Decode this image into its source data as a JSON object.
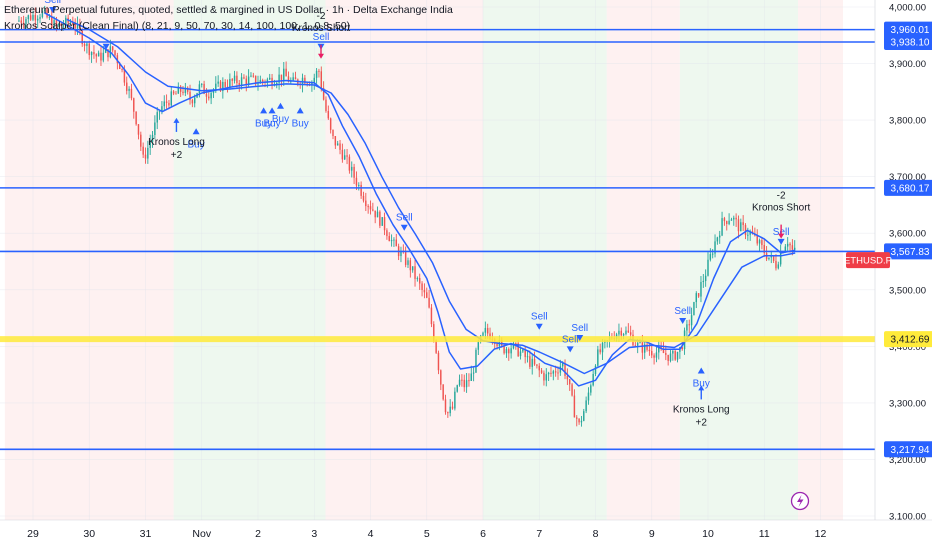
{
  "header": {
    "title": "Ethereum Perpetual futures, quoted, settled & margined in US Dollar · 1h · Delta Exchange India",
    "indicator": "Kronos Scalper (Clean Final) (8, 21, 9, 50, 70, 30, 14, 100, 100, 1, 0.8, 50)"
  },
  "colors": {
    "up": "#26a69a",
    "down": "#ef5350",
    "ema": "#2962ff",
    "level": "#2962ff",
    "highlight": "#ffeb3b",
    "bg_long": "#e8f5e9",
    "bg_short": "#fdecec",
    "price_tag": "#ef3d47",
    "axis_text": "#131722"
  },
  "chart_data": {
    "type": "candlestick",
    "title": "Ethereum Perpetual futures, quoted, settled & margined in US Dollar · 1h · Delta Exchange India",
    "symbol": "ETHUSD.P",
    "interval": "1h",
    "ylim": [
      3080,
      4025
    ],
    "y_ticks": [
      4000,
      3900,
      3800,
      3700,
      3600,
      3500,
      3400,
      3300,
      3200,
      3100
    ],
    "y_tick_labels": [
      "4,000.00",
      "3,900.00",
      "3,800.00",
      "3,700.00",
      "3,600.00",
      "3,500.00",
      "3,400.00",
      "3,300.00",
      "3,200.00",
      "3,100.00"
    ],
    "x_day_labels": [
      {
        "label": "29",
        "day": 0
      },
      {
        "label": "30",
        "day": 1
      },
      {
        "label": "31",
        "day": 2
      },
      {
        "label": "Nov",
        "day": 3
      },
      {
        "label": "2",
        "day": 4
      },
      {
        "label": "3",
        "day": 5
      },
      {
        "label": "4",
        "day": 6
      },
      {
        "label": "5",
        "day": 7
      },
      {
        "label": "6",
        "day": 8
      },
      {
        "label": "7",
        "day": 9
      },
      {
        "label": "8",
        "day": 10
      },
      {
        "label": "9",
        "day": 11
      },
      {
        "label": "10",
        "day": 12
      },
      {
        "label": "11",
        "day": 13
      },
      {
        "label": "12",
        "day": 14
      }
    ],
    "price_path": [
      [
        -0.25,
        3975
      ],
      [
        0.2,
        3990
      ],
      [
        0.45,
        3965
      ],
      [
        0.75,
        3975
      ],
      [
        1.0,
        3930
      ],
      [
        1.2,
        3910
      ],
      [
        1.45,
        3925
      ],
      [
        1.6,
        3895
      ],
      [
        1.75,
        3850
      ],
      [
        1.88,
        3800
      ],
      [
        2.0,
        3730
      ],
      [
        2.12,
        3760
      ],
      [
        2.3,
        3820
      ],
      [
        2.5,
        3840
      ],
      [
        2.7,
        3855
      ],
      [
        2.85,
        3835
      ],
      [
        3.0,
        3858
      ],
      [
        3.15,
        3848
      ],
      [
        3.4,
        3862
      ],
      [
        3.6,
        3868
      ],
      [
        3.85,
        3872
      ],
      [
        4.05,
        3868
      ],
      [
        4.3,
        3872
      ],
      [
        4.5,
        3880
      ],
      [
        4.65,
        3865
      ],
      [
        4.85,
        3875
      ],
      [
        5.0,
        3868
      ],
      [
        5.12,
        3890
      ],
      [
        5.22,
        3830
      ],
      [
        5.35,
        3770
      ],
      [
        5.55,
        3740
      ],
      [
        5.75,
        3700
      ],
      [
        5.95,
        3660
      ],
      [
        6.1,
        3640
      ],
      [
        6.3,
        3610
      ],
      [
        6.45,
        3580
      ],
      [
        6.6,
        3560
      ],
      [
        6.75,
        3540
      ],
      [
        6.9,
        3510
      ],
      [
        7.05,
        3480
      ],
      [
        7.2,
        3400
      ],
      [
        7.3,
        3330
      ],
      [
        7.4,
        3280
      ],
      [
        7.5,
        3290
      ],
      [
        7.6,
        3340
      ],
      [
        7.72,
        3330
      ],
      [
        7.85,
        3350
      ],
      [
        7.95,
        3400
      ],
      [
        8.08,
        3425
      ],
      [
        8.22,
        3420
      ],
      [
        8.38,
        3395
      ],
      [
        8.55,
        3400
      ],
      [
        8.7,
        3390
      ],
      [
        8.85,
        3375
      ],
      [
        9.0,
        3360
      ],
      [
        9.15,
        3345
      ],
      [
        9.3,
        3355
      ],
      [
        9.45,
        3370
      ],
      [
        9.55,
        3340
      ],
      [
        9.65,
        3290
      ],
      [
        9.75,
        3260
      ],
      [
        9.88,
        3300
      ],
      [
        10.05,
        3380
      ],
      [
        10.2,
        3400
      ],
      [
        10.35,
        3420
      ],
      [
        10.5,
        3430
      ],
      [
        10.65,
        3420
      ],
      [
        10.8,
        3400
      ],
      [
        10.95,
        3395
      ],
      [
        11.1,
        3390
      ],
      [
        11.25,
        3388
      ],
      [
        11.4,
        3380
      ],
      [
        11.55,
        3395
      ],
      [
        11.7,
        3440
      ],
      [
        11.85,
        3490
      ],
      [
        12.0,
        3530
      ],
      [
        12.15,
        3580
      ],
      [
        12.3,
        3620
      ],
      [
        12.45,
        3630
      ],
      [
        12.6,
        3610
      ],
      [
        12.8,
        3600
      ],
      [
        12.95,
        3580
      ],
      [
        13.1,
        3560
      ],
      [
        13.25,
        3545
      ],
      [
        13.35,
        3570
      ],
      [
        13.45,
        3590
      ],
      [
        13.55,
        3567
      ]
    ],
    "ema_fast_path": [
      [
        0.2,
        3990
      ],
      [
        0.6,
        3968
      ],
      [
        1.0,
        3945
      ],
      [
        1.4,
        3918
      ],
      [
        1.7,
        3880
      ],
      [
        2.0,
        3830
      ],
      [
        2.3,
        3815
      ],
      [
        2.6,
        3830
      ],
      [
        3.0,
        3848
      ],
      [
        3.5,
        3858
      ],
      [
        4.0,
        3866
      ],
      [
        4.5,
        3870
      ],
      [
        5.0,
        3866
      ],
      [
        5.25,
        3845
      ],
      [
        5.5,
        3790
      ],
      [
        5.8,
        3735
      ],
      [
        6.1,
        3670
      ],
      [
        6.4,
        3615
      ],
      [
        6.7,
        3570
      ],
      [
        7.0,
        3520
      ],
      [
        7.2,
        3460
      ],
      [
        7.4,
        3390
      ],
      [
        7.6,
        3360
      ],
      [
        7.9,
        3365
      ],
      [
        8.2,
        3395
      ],
      [
        8.5,
        3405
      ],
      [
        8.8,
        3392
      ],
      [
        9.1,
        3370
      ],
      [
        9.4,
        3360
      ],
      [
        9.7,
        3330
      ],
      [
        10.0,
        3340
      ],
      [
        10.3,
        3385
      ],
      [
        10.6,
        3412
      ],
      [
        10.9,
        3408
      ],
      [
        11.2,
        3395
      ],
      [
        11.5,
        3395
      ],
      [
        11.8,
        3440
      ],
      [
        12.1,
        3520
      ],
      [
        12.4,
        3585
      ],
      [
        12.7,
        3605
      ],
      [
        13.0,
        3590
      ],
      [
        13.3,
        3565
      ],
      [
        13.55,
        3570
      ]
    ],
    "ema_slow_path": [
      [
        0.6,
        3978
      ],
      [
        1.0,
        3960
      ],
      [
        1.5,
        3930
      ],
      [
        2.0,
        3885
      ],
      [
        2.4,
        3860
      ],
      [
        3.0,
        3852
      ],
      [
        3.5,
        3855
      ],
      [
        4.0,
        3860
      ],
      [
        4.5,
        3864
      ],
      [
        5.0,
        3862
      ],
      [
        5.3,
        3848
      ],
      [
        5.6,
        3810
      ],
      [
        5.9,
        3760
      ],
      [
        6.2,
        3700
      ],
      [
        6.5,
        3645
      ],
      [
        6.8,
        3598
      ],
      [
        7.1,
        3548
      ],
      [
        7.4,
        3480
      ],
      [
        7.7,
        3430
      ],
      [
        8.0,
        3410
      ],
      [
        8.3,
        3405
      ],
      [
        8.7,
        3402
      ],
      [
        9.0,
        3390
      ],
      [
        9.4,
        3372
      ],
      [
        9.8,
        3352
      ],
      [
        10.2,
        3370
      ],
      [
        10.6,
        3398
      ],
      [
        11.0,
        3402
      ],
      [
        11.4,
        3398
      ],
      [
        11.8,
        3420
      ],
      [
        12.2,
        3480
      ],
      [
        12.6,
        3540
      ],
      [
        13.0,
        3560
      ],
      [
        13.3,
        3560
      ],
      [
        13.55,
        3565
      ]
    ],
    "horizontal_levels": [
      {
        "value": 3960.01,
        "label": "3,960.01",
        "color": "#2962ff",
        "kind": "level"
      },
      {
        "value": 3938.1,
        "label": "3,938.10",
        "color": "#2962ff",
        "kind": "level"
      },
      {
        "value": 3680.17,
        "label": "3,680.17",
        "color": "#2962ff",
        "kind": "level"
      },
      {
        "value": 3567.83,
        "label": "3,567.83",
        "color": "#2962ff",
        "kind": "level"
      },
      {
        "value": 3412.69,
        "label": "3,412.69",
        "color": "#ffeb3b",
        "kind": "highlight"
      },
      {
        "value": 3217.94,
        "label": "3,217.94",
        "color": "#2962ff",
        "kind": "level"
      }
    ],
    "current_price": {
      "value": 3556,
      "label": "ETHUSD.P"
    },
    "signals": [
      {
        "day": 0.35,
        "value": 4000,
        "type": "sell",
        "label": "Sell"
      },
      {
        "day": 1.3,
        "value": 3935,
        "type": "sell",
        "label": ""
      },
      {
        "day": 2.9,
        "value": 3775,
        "type": "buy",
        "label": "Buy"
      },
      {
        "day": 4.1,
        "value": 3812,
        "type": "buy",
        "label": "Buy"
      },
      {
        "day": 4.25,
        "value": 3812,
        "type": "buy",
        "label": "Buy"
      },
      {
        "day": 4.4,
        "value": 3820,
        "type": "buy",
        "label": "Buy"
      },
      {
        "day": 4.75,
        "value": 3812,
        "type": "buy",
        "label": "Buy"
      },
      {
        "day": 5.12,
        "value": 3935,
        "type": "sell",
        "label": "Sell"
      },
      {
        "day": 6.6,
        "value": 3615,
        "type": "sell",
        "label": "Sell"
      },
      {
        "day": 9.0,
        "value": 3440,
        "type": "sell",
        "label": "Sell"
      },
      {
        "day": 9.55,
        "value": 3400,
        "type": "sell",
        "label": "Sell"
      },
      {
        "day": 9.72,
        "value": 3420,
        "type": "sell",
        "label": "Sell"
      },
      {
        "day": 11.55,
        "value": 3450,
        "type": "sell",
        "label": "Sell"
      },
      {
        "day": 11.88,
        "value": 3352,
        "type": "buy",
        "label": "Buy"
      },
      {
        "day": 13.3,
        "value": 3590,
        "type": "sell",
        "label": "Sell"
      }
    ],
    "kronos_labels": [
      {
        "day": 2.55,
        "value": 3765,
        "text": "Kronos Long",
        "sub": "+2",
        "kind": "long"
      },
      {
        "day": 5.12,
        "value": 3958,
        "text": "Kronos Short",
        "sub": "-2",
        "kind": "short"
      },
      {
        "day": 11.88,
        "value": 3292,
        "text": "Kronos Long",
        "sub": "+2",
        "kind": "long"
      },
      {
        "day": 13.3,
        "value": 3640,
        "text": "Kronos Short",
        "sub": "-2",
        "kind": "short"
      }
    ],
    "background_zones": [
      {
        "from": -0.5,
        "to": 2.5,
        "kind": "short"
      },
      {
        "from": 2.5,
        "to": 5.2,
        "kind": "long"
      },
      {
        "from": 5.2,
        "to": 8.0,
        "kind": "short"
      },
      {
        "from": 8.0,
        "to": 10.2,
        "kind": "long"
      },
      {
        "from": 10.2,
        "to": 11.5,
        "kind": "short"
      },
      {
        "from": 11.5,
        "to": 13.6,
        "kind": "long"
      },
      {
        "from": 13.6,
        "to": 14.4,
        "kind": "short"
      }
    ],
    "grid": true
  }
}
